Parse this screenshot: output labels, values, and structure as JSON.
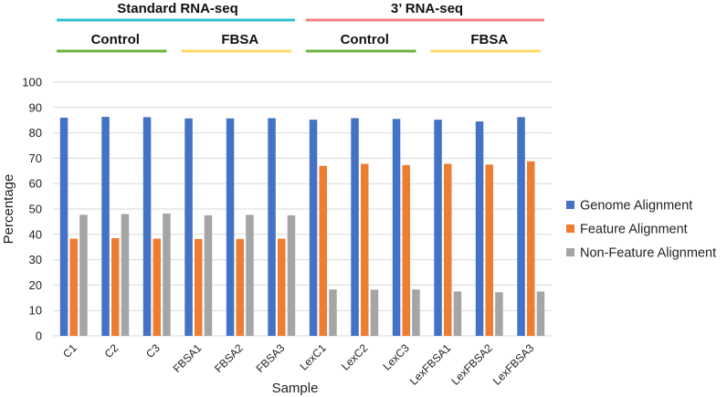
{
  "chart_data": {
    "type": "bar",
    "title": "",
    "xlabel": "Sample",
    "ylabel": "Percentage",
    "ylim": [
      0,
      100
    ],
    "yticks": [
      0,
      10,
      20,
      30,
      40,
      50,
      60,
      70,
      80,
      90,
      100
    ],
    "grid": true,
    "legend_position": "right",
    "categories": [
      "C1",
      "C2",
      "C3",
      "FBSA1",
      "FBSA2",
      "FBSA3",
      "LexC1",
      "LexC2",
      "LexC3",
      "LexFBSA1",
      "LexFBSA2",
      "LexFBSA3"
    ],
    "series": [
      {
        "name": "Genome Alignment",
        "color": "#4472C4",
        "values": [
          86,
          86.3,
          86.2,
          85.7,
          85.7,
          85.8,
          85.2,
          85.8,
          85.5,
          85.2,
          84.5,
          86.2
        ]
      },
      {
        "name": "Feature Alignment",
        "color": "#ED7D31",
        "values": [
          38.3,
          38.5,
          38.3,
          38.2,
          38.2,
          38.3,
          67,
          67.8,
          67.3,
          67.8,
          67.5,
          68.8
        ]
      },
      {
        "name": "Non-Feature Alignment",
        "color": "#A5A5A5",
        "values": [
          47.7,
          48,
          48.2,
          47.5,
          47.7,
          47.5,
          18.3,
          18.2,
          18.3,
          17.5,
          17.2,
          17.5
        ]
      }
    ],
    "group_headers": [
      {
        "label": "Standard RNA-seq",
        "color": "#2BBFD2",
        "from": 0,
        "to": 5
      },
      {
        "label": "3’ RNA-seq",
        "color": "#F28080",
        "from": 6,
        "to": 11
      }
    ],
    "subgroup_headers": [
      {
        "label": "Control",
        "color": "#6DB33F",
        "from": 0,
        "to": 2
      },
      {
        "label": "FBSA",
        "color": "#FFD966",
        "from": 3,
        "to": 5
      },
      {
        "label": "Control",
        "color": "#6DB33F",
        "from": 6,
        "to": 8
      },
      {
        "label": "FBSA",
        "color": "#FFD966",
        "from": 9,
        "to": 11
      }
    ]
  }
}
